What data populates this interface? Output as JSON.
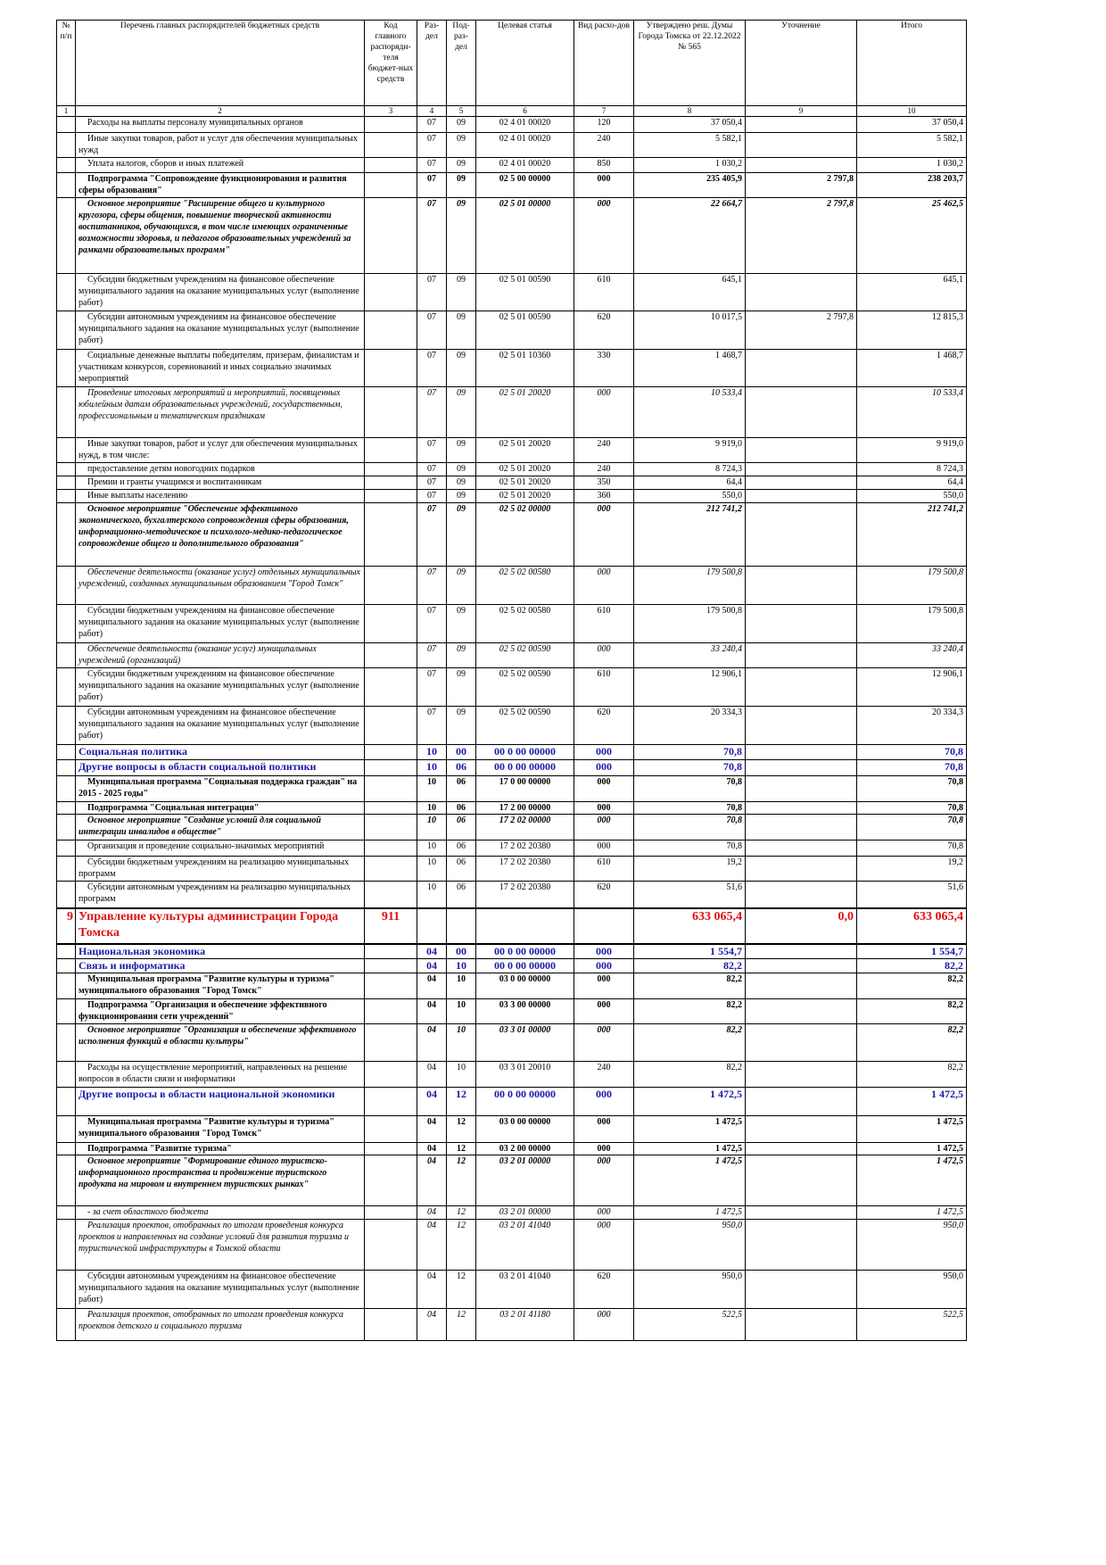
{
  "header": [
    "№ п/п",
    "Перечень главных распорядителей бюджетных средств",
    "Код главного распоряди-теля бюджет-ных средств",
    "Раз-дел",
    "Под-раз-дел",
    "Целевая статья",
    "Вид расхо-дов",
    "Утверждено реш. Думы Города Томска от 22.12.2022 № 565",
    "Уточнение",
    "Итого"
  ],
  "column_numbers": [
    "1",
    "2",
    "3",
    "4",
    "5",
    "6",
    "7",
    "8",
    "9",
    "10"
  ],
  "rows": [
    {
      "style": "n",
      "cells": [
        null,
        "Расходы на выплаты персоналу муниципальных органов",
        null,
        "07",
        "09",
        "02 4 01 00020",
        "120",
        "37 050,4",
        null,
        "37 050,4"
      ]
    },
    {
      "style": "n",
      "cells": [
        null,
        "Иные закупки товаров, работ и услуг для обеспечения муниципальных нужд",
        null,
        "07",
        "09",
        "02 4 01 00020",
        "240",
        "5 582,1",
        null,
        "5 582,1"
      ]
    },
    {
      "style": "n",
      "cells": [
        null,
        "Уплата налогов, сборов и иных платежей",
        null,
        "07",
        "09",
        "02 4 01 00020",
        "850",
        "1 030,2",
        null,
        "1 030,2"
      ]
    },
    {
      "style": "b",
      "cells": [
        null,
        "Подпрограмма \"Сопровождение функционирования и развития сферы образования\"",
        null,
        "07",
        "09",
        "02 5 00 00000",
        "000",
        "235 405,9",
        "2 797,8",
        "238 203,7"
      ]
    },
    {
      "style": "bi",
      "cells": [
        null,
        "Основное мероприятие \"Расширение общего и культурного кругозора, сферы общения, повышение творческой активности воспитанников, обучающихся, в том числе имеющих ограниченные возможности здоровья, и педагогов образовательных учреждений за рамками образовательных программ\"",
        null,
        "07",
        "09",
        "02 5 01 00000",
        "000",
        "22 664,7",
        "2 797,8",
        "25 462,5"
      ]
    },
    {
      "style": "n",
      "cells": [
        null,
        "Субсидии бюджетным учреждениям на финансовое обеспечение муниципального задания на оказание муниципальных услуг (выполнение работ)",
        null,
        "07",
        "09",
        "02 5 01 00590",
        "610",
        "645,1",
        null,
        "645,1"
      ]
    },
    {
      "style": "n",
      "cells": [
        null,
        "Субсидии автономным учреждениям на финансовое обеспечение муниципального задания на оказание муниципальных услуг (выполнение работ)",
        null,
        "07",
        "09",
        "02 5 01 00590",
        "620",
        "10 017,5",
        "2 797,8",
        "12 815,3"
      ]
    },
    {
      "style": "n",
      "cells": [
        null,
        "Социальные денежные выплаты победителям, призерам, финалистам и участникам конкурсов, соревнований и иных социально значимых мероприятий",
        null,
        "07",
        "09",
        "02 5 01 10360",
        "330",
        "1 468,7",
        null,
        "1 468,7"
      ]
    },
    {
      "style": "i",
      "cells": [
        null,
        "Проведение итоговых мероприятий и мероприятий, посвященных юбилейным датам образовательных учреждений, государственным, профессиональным и тематическим праздникам",
        null,
        "07",
        "09",
        "02 5 01 20020",
        "000",
        "10 533,4",
        null,
        "10 533,4"
      ]
    },
    {
      "style": "n",
      "cells": [
        null,
        "Иные закупки товаров, работ и услуг для обеспечения муниципальных нужд, в том числе:",
        null,
        "07",
        "09",
        "02 5 01 20020",
        "240",
        "9 919,0",
        null,
        "9 919,0"
      ]
    },
    {
      "style": "n",
      "cells": [
        null,
        "предоставление детям новогодних подарков",
        null,
        "07",
        "09",
        "02 5 01 20020",
        "240",
        "8 724,3",
        null,
        "8 724,3"
      ]
    },
    {
      "style": "n",
      "cells": [
        null,
        "Премии и гранты учащимся и воспитанникам",
        null,
        "07",
        "09",
        "02 5 01 20020",
        "350",
        "64,4",
        null,
        "64,4"
      ]
    },
    {
      "style": "n",
      "cells": [
        null,
        "Иные выплаты населению",
        null,
        "07",
        "09",
        "02 5 01 20020",
        "360",
        "550,0",
        null,
        "550,0"
      ]
    },
    {
      "style": "bi",
      "cells": [
        null,
        "Основное мероприятие \"Обеспечение эффективного экономического, бухгалтерского сопровождения сферы образования, информационно-методическое и психолого-медико-педагогическое сопровождение общего и дополнительного образования\"",
        null,
        "07",
        "09",
        "02 5 02 00000",
        "000",
        "212 741,2",
        null,
        "212 741,2"
      ]
    },
    {
      "style": "i",
      "cells": [
        null,
        "Обеспечение деятельности (оказание услуг) отдельных муниципальных учреждений, созданных муниципальным образованием \"Город Томск\"",
        null,
        "07",
        "09",
        "02 5 02 00580",
        "000",
        "179 500,8",
        null,
        "179 500,8"
      ]
    },
    {
      "style": "n",
      "cells": [
        null,
        "Субсидии бюджетным учреждениям на финансовое обеспечение муниципального задания на оказание муниципальных услуг (выполнение работ)",
        null,
        "07",
        "09",
        "02 5 02 00580",
        "610",
        "179 500,8",
        null,
        "179 500,8"
      ]
    },
    {
      "style": "i",
      "cells": [
        null,
        "Обеспечение деятельности (оказание услуг) муниципальных учреждений (организаций)",
        null,
        "07",
        "09",
        "02 5 02 00590",
        "000",
        "33 240,4",
        null,
        "33 240,4"
      ]
    },
    {
      "style": "n",
      "cells": [
        null,
        "Субсидии бюджетным учреждениям на финансовое обеспечение муниципального задания на оказание муниципальных услуг (выполнение работ)",
        null,
        "07",
        "09",
        "02 5 02 00590",
        "610",
        "12 906,1",
        null,
        "12 906,1"
      ]
    },
    {
      "style": "n",
      "cells": [
        null,
        "Субсидии автономным учреждениям на финансовое обеспечение муниципального задания на оказание муниципальных услуг (выполнение работ)",
        null,
        "07",
        "09",
        "02 5 02 00590",
        "620",
        "20 334,3",
        null,
        "20 334,3"
      ]
    },
    {
      "style": "s",
      "cells": [
        null,
        "Социальная политика",
        null,
        "10",
        "00",
        "00 0 00 00000",
        "000",
        "70,8",
        null,
        "70,8"
      ]
    },
    {
      "style": "s",
      "cells": [
        null,
        "Другие вопросы в области социальной политики",
        null,
        "10",
        "06",
        "00 0 00 00000",
        "000",
        "70,8",
        null,
        "70,8"
      ]
    },
    {
      "style": "b",
      "cells": [
        null,
        "Муниципальная программа \"Социальная поддержка граждан\" на 2015 - 2025 годы\"",
        null,
        "10",
        "06",
        "17 0 00 00000",
        "000",
        "70,8",
        null,
        "70,8"
      ]
    },
    {
      "style": "b",
      "cells": [
        null,
        "Подпрограмма \"Социальная интеграция\"",
        null,
        "10",
        "06",
        "17 2 00 00000",
        "000",
        "70,8",
        null,
        "70,8"
      ]
    },
    {
      "style": "bi",
      "cells": [
        null,
        "Основное мероприятие \"Создание условий для социальной интеграции инвалидов в обществе\"",
        null,
        "10",
        "06",
        "17 2 02 00000",
        "000",
        "70,8",
        null,
        "70,8"
      ]
    },
    {
      "style": "n",
      "cells": [
        null,
        "Организация и проведение социально-значимых мероприятий",
        null,
        "10",
        "06",
        "17 2 02 20380",
        "000",
        "70,8",
        null,
        "70,8"
      ]
    },
    {
      "style": "n",
      "cells": [
        null,
        "Субсидии бюджетным учреждениям на реализацию муниципальных программ",
        null,
        "10",
        "06",
        "17 2 02 20380",
        "610",
        "19,2",
        null,
        "19,2"
      ]
    },
    {
      "style": "n",
      "cells": [
        null,
        "Субсидии автономным учреждениям на реализацию муниципальных программ",
        null,
        "10",
        "06",
        "17 2 02 20380",
        "620",
        "51,6",
        null,
        "51,6"
      ]
    },
    {
      "style": "r",
      "cells": [
        "9",
        "Управление культуры администрации Города Томска",
        "911",
        null,
        null,
        null,
        null,
        "633 065,4",
        "0,0",
        "633 065,4"
      ]
    },
    {
      "style": "s",
      "cells": [
        null,
        "Национальная экономика",
        null,
        "04",
        "00",
        "00 0 00 00000",
        "000",
        "1 554,7",
        null,
        "1 554,7"
      ]
    },
    {
      "style": "s",
      "cells": [
        null,
        "Связь и информатика",
        null,
        "04",
        "10",
        "00 0 00 00000",
        "000",
        "82,2",
        null,
        "82,2"
      ]
    },
    {
      "style": "b",
      "cells": [
        null,
        "Муниципальная программа \"Развитие культуры и туризма\" муниципального образования \"Город Томск\"",
        null,
        "04",
        "10",
        "03 0 00 00000",
        "000",
        "82,2",
        null,
        "82,2"
      ]
    },
    {
      "style": "b",
      "cells": [
        null,
        "Подпрограмма \"Организация и обеспечение эффективного функционирования сети учреждений\"",
        null,
        "04",
        "10",
        "03 3 00 00000",
        "000",
        "82,2",
        null,
        "82,2"
      ]
    },
    {
      "style": "bi",
      "cells": [
        null,
        "Основное мероприятие \"Организация и обеспечение эффективного исполнения функций в области культуры\"",
        null,
        "04",
        "10",
        "03 3 01 00000",
        "000",
        "82,2",
        null,
        "82,2"
      ]
    },
    {
      "style": "n",
      "cells": [
        null,
        "Расходы на осуществление мероприятий, направленных на решение вопросов в области связи и информатики",
        null,
        "04",
        "10",
        "03 3 01 20010",
        "240",
        "82,2",
        null,
        "82,2"
      ]
    },
    {
      "style": "s",
      "cells": [
        null,
        "Другие вопросы в области национальной экономики",
        null,
        "04",
        "12",
        "00 0 00 00000",
        "000",
        "1 472,5",
        null,
        "1 472,5"
      ]
    },
    {
      "style": "b",
      "cells": [
        null,
        "Муниципальная программа \"Развитие культуры и туризма\" муниципального образования \"Город Томск\"",
        null,
        "04",
        "12",
        "03 0 00 00000",
        "000",
        "1 472,5",
        null,
        "1 472,5"
      ]
    },
    {
      "style": "b",
      "cells": [
        null,
        "Подпрограмма \"Развитие туризма\"",
        null,
        "04",
        "12",
        "03 2 00 00000",
        "000",
        "1 472,5",
        null,
        "1 472,5"
      ]
    },
    {
      "style": "bi",
      "cells": [
        null,
        "Основное мероприятие \"Формирование единого туристско-информационного пространства и продвижение туристского продукта на мировом и внутреннем туристских рынках\"",
        null,
        "04",
        "12",
        "03 2 01 00000",
        "000",
        "1 472,5",
        null,
        "1 472,5"
      ]
    },
    {
      "style": "i",
      "cells": [
        null,
        "- за счет областного бюджета",
        null,
        "04",
        "12",
        "03 2 01 00000",
        "000",
        "1 472,5",
        null,
        "1 472,5"
      ]
    },
    {
      "style": "i",
      "cells": [
        null,
        "Реализация проектов, отобранных по итогам проведения конкурса проектов и направленных на создание условий для развития туризма и туристической инфраструктуры в Томской области",
        null,
        "04",
        "12",
        "03 2 01 41040",
        "000",
        "950,0",
        null,
        "950,0"
      ]
    },
    {
      "style": "n",
      "cells": [
        null,
        "Субсидии автономным учреждениям на финансовое обеспечение муниципального задания на оказание муниципальных услуг (выполнение работ)",
        null,
        "04",
        "12",
        "03 2 01 41040",
        "620",
        "950,0",
        null,
        "950,0"
      ]
    },
    {
      "style": "i",
      "cells": [
        null,
        "Реализация проектов, отобранных по итогам проведения конкурса проектов детского и социального туризма",
        null,
        "04",
        "12",
        "03 2 01 41180",
        "000",
        "522,5",
        null,
        "522,5"
      ]
    }
  ]
}
